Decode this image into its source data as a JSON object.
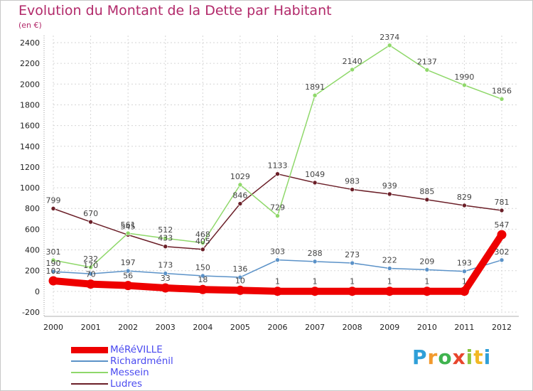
{
  "title": "Evolution du Montant de la Dette par Habitant",
  "subtitle": "(en €)",
  "brand": {
    "letters": [
      "P",
      "r",
      "o",
      "x",
      "i",
      "t",
      "i"
    ],
    "colors": [
      "#2f9fd8",
      "#f29a2e",
      "#3fb34f",
      "#e8452c",
      "#8bc53f",
      "#f2b824",
      "#2f9fd8"
    ]
  },
  "chart_data": {
    "type": "line",
    "title": "Evolution du Montant de la Dette par Habitant",
    "ylabel": "(en €)",
    "xlabel": "",
    "ylim": [
      -200,
      2400
    ],
    "yticks": [
      -200,
      0,
      200,
      400,
      600,
      800,
      1000,
      1200,
      1400,
      1600,
      1800,
      2000,
      2200,
      2400
    ],
    "x": [
      "2000",
      "2001",
      "2002",
      "2003",
      "2004",
      "2005",
      "2006",
      "2007",
      "2008",
      "2009",
      "2010",
      "2011",
      "2012"
    ],
    "legend": "bottom-left",
    "series": [
      {
        "name": "Ludres",
        "color": "#6b1f28",
        "values": [
          799,
          670,
          545,
          433,
          405,
          846,
          1133,
          1049,
          983,
          939,
          885,
          829,
          781
        ]
      },
      {
        "name": "Messein",
        "color": "#8fd86a",
        "values": [
          301,
          232,
          561,
          512,
          468,
          1029,
          729,
          1891,
          2140,
          2374,
          2137,
          1990,
          1856
        ]
      },
      {
        "name": "Richardménil",
        "color": "#5b92c8",
        "values": [
          190,
          170,
          197,
          173,
          150,
          136,
          303,
          288,
          273,
          222,
          209,
          193,
          302
        ]
      },
      {
        "name": "MéRéVILLE",
        "color": "#ee0000",
        "values": [
          102,
          70,
          56,
          33,
          18,
          10,
          1,
          1,
          1,
          1,
          1,
          1,
          547
        ]
      }
    ],
    "legend_order": [
      "MéRéVILLE",
      "Richardménil",
      "Messein",
      "Ludres"
    ]
  }
}
